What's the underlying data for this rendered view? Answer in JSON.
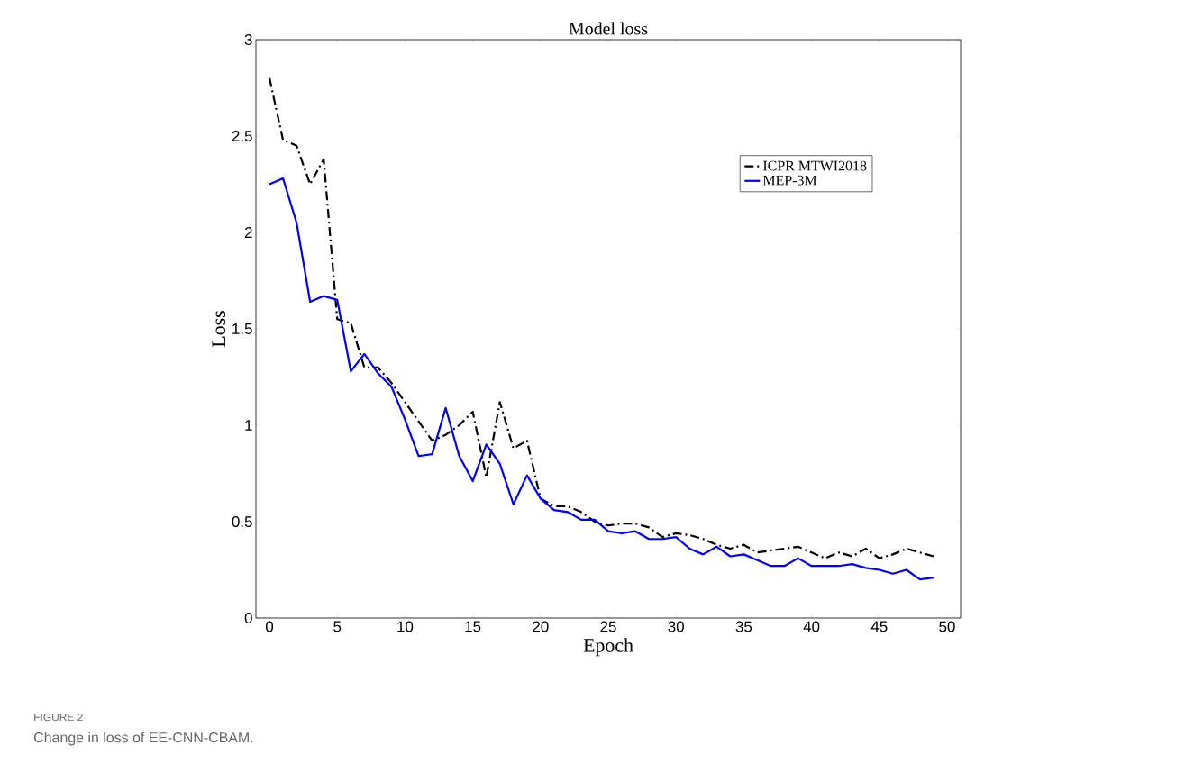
{
  "chart_data": {
    "type": "line",
    "title": "Model loss",
    "xlabel": "Epoch",
    "ylabel": "Loss",
    "x": [
      0,
      1,
      2,
      3,
      4,
      5,
      6,
      7,
      8,
      9,
      10,
      11,
      12,
      13,
      14,
      15,
      16,
      17,
      18,
      19,
      20,
      21,
      22,
      23,
      24,
      25,
      26,
      27,
      28,
      29,
      30,
      31,
      32,
      33,
      34,
      35,
      36,
      37,
      38,
      39,
      40,
      41,
      42,
      43,
      44,
      45,
      46,
      47,
      48,
      49
    ],
    "series": [
      {
        "name": "ICPR MTWI2018",
        "color": "#000000",
        "line_style": "dashdot",
        "values": [
          2.8,
          2.48,
          2.45,
          2.25,
          2.38,
          1.55,
          1.53,
          1.3,
          1.3,
          1.22,
          1.12,
          1.02,
          0.92,
          0.95,
          1.0,
          1.07,
          0.73,
          1.12,
          0.88,
          0.92,
          0.62,
          0.58,
          0.58,
          0.55,
          0.5,
          0.48,
          0.49,
          0.49,
          0.47,
          0.42,
          0.44,
          0.43,
          0.41,
          0.38,
          0.36,
          0.38,
          0.34,
          0.35,
          0.36,
          0.37,
          0.34,
          0.31,
          0.34,
          0.32,
          0.36,
          0.31,
          0.33,
          0.36,
          0.34,
          0.32
        ]
      },
      {
        "name": "MEP-3M",
        "color": "#0000ff",
        "line_style": "solid",
        "values": [
          2.25,
          2.28,
          2.05,
          1.64,
          1.67,
          1.65,
          1.28,
          1.37,
          1.27,
          1.2,
          1.03,
          0.84,
          0.85,
          1.09,
          0.84,
          0.71,
          0.9,
          0.8,
          0.59,
          0.74,
          0.62,
          0.56,
          0.55,
          0.51,
          0.51,
          0.45,
          0.44,
          0.45,
          0.41,
          0.41,
          0.42,
          0.36,
          0.33,
          0.37,
          0.32,
          0.33,
          0.3,
          0.27,
          0.27,
          0.31,
          0.27,
          0.27,
          0.27,
          0.28,
          0.26,
          0.25,
          0.23,
          0.25,
          0.2,
          0.21
        ]
      }
    ],
    "xlim": [
      -1,
      51
    ],
    "xticks": [
      0,
      5,
      10,
      15,
      20,
      25,
      30,
      35,
      40,
      45,
      50
    ],
    "ylim": [
      0,
      3
    ],
    "yticks": [
      0,
      0.5,
      1,
      1.5,
      2,
      2.5,
      3
    ],
    "grid": false,
    "legend": "top right",
    "marker": "none",
    "annotations": [
      "FIGURE 2",
      "Change in loss of EE-CNN-CBAM."
    ]
  }
}
